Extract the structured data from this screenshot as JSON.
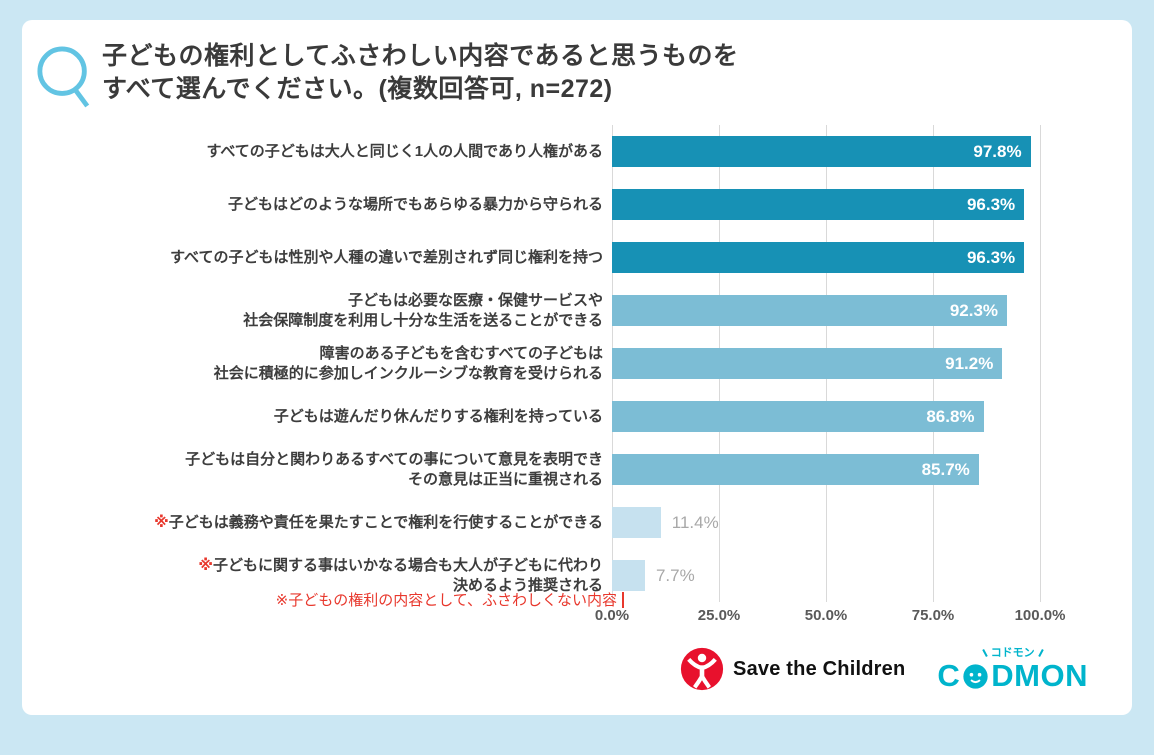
{
  "question": {
    "mark": "Q",
    "line1": "子どもの権利としてふさわしい内容であると思うものを",
    "line2": "すべて選んでください。(複数回答可, n=272)"
  },
  "chart_data": {
    "type": "bar",
    "orientation": "horizontal",
    "title": "子どもの権利としてふさわしい内容であると思うものをすべて選んでください。(複数回答可, n=272)",
    "xlim": [
      0,
      100
    ],
    "x_ticks": [
      "0.0%",
      "25.0%",
      "50.0%",
      "75.0%",
      "100.0%"
    ],
    "x_tick_values": [
      0,
      25,
      50,
      75,
      100
    ],
    "grid": true,
    "flag_symbol": "※",
    "footnote": "※子どもの権利の内容として、ふさわしくない内容",
    "colors": {
      "dark": "#1791b5",
      "mid": "#7cbdd5",
      "light": "#c6e1ef"
    },
    "value_label_inside_color": "#ffffff",
    "value_label_outside_color": "#a8a8a8",
    "bars": [
      {
        "label": "すべての子どもは大人と同じく1人の人間であり人権がある",
        "value": 97.8,
        "display": "97.8%",
        "tier": "dark",
        "flagged": false
      },
      {
        "label": "子どもはどのような場所でもあらゆる暴力から守られる",
        "value": 96.3,
        "display": "96.3%",
        "tier": "dark",
        "flagged": false
      },
      {
        "label": "すべての子どもは性別や人種の違いで差別されず同じ権利を持つ",
        "value": 96.3,
        "display": "96.3%",
        "tier": "dark",
        "flagged": false
      },
      {
        "label": "子どもは必要な医療・保健サービスや\n社会保障制度を利用し十分な生活を送ることができる",
        "value": 92.3,
        "display": "92.3%",
        "tier": "mid",
        "flagged": false
      },
      {
        "label": "障害のある子どもを含むすべての子どもは\n社会に積極的に参加しインクルーシブな教育を受けられる",
        "value": 91.2,
        "display": "91.2%",
        "tier": "mid",
        "flagged": false
      },
      {
        "label": "子どもは遊んだり休んだりする権利を持っている",
        "value": 86.8,
        "display": "86.8%",
        "tier": "mid",
        "flagged": false
      },
      {
        "label": "子どもは自分と関わりあるすべての事について意見を表明でき\nその意見は正当に重視される",
        "value": 85.7,
        "display": "85.7%",
        "tier": "mid",
        "flagged": false
      },
      {
        "label": "子どもは義務や責任を果たすことで権利を行使することができる",
        "value": 11.4,
        "display": "11.4%",
        "tier": "light",
        "flagged": true
      },
      {
        "label": "子どもに関する事はいかなる場合も大人が子どもに代わり\n決めるよう推奨される",
        "value": 7.7,
        "display": "7.7%",
        "tier": "light",
        "flagged": true
      }
    ]
  },
  "footer": {
    "save_the_children": {
      "name": "Save the Children"
    },
    "codmon": {
      "kana": "コドモン",
      "part1": "C",
      "part2": "DMON",
      "full": "CoDMON"
    }
  },
  "colors": {
    "background": "#cbe7f3",
    "card": "#ffffff",
    "accent_red": "#e8382d",
    "q_mark": "#62c4e3",
    "stc_red": "#e8112d",
    "codmon_teal": "#00b4cc"
  }
}
